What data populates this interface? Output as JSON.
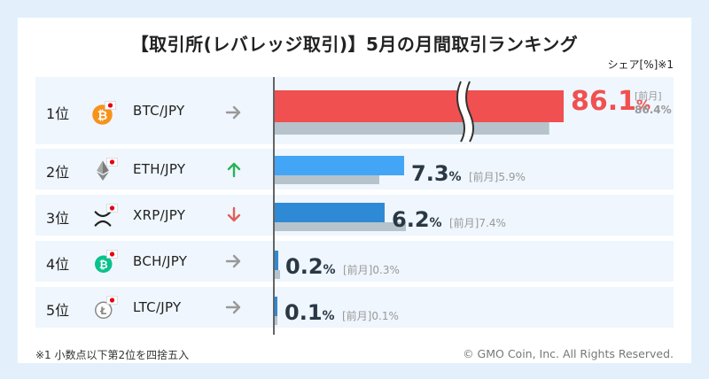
{
  "title": "【取引所(レバレッジ取引)】5月の月間取引ランキング",
  "share_label": "シェア[%]※1",
  "footnote": "※1 小数点以下第2位を四捨五入",
  "copyright": "© GMO Coin, Inc. All Rights Reserved.",
  "colors": {
    "highlight": "#f05050",
    "bar": "#42a5f5",
    "bar_dark": "#2f8ad6",
    "previous": "#b7c3cc",
    "row_bg": "#eff6fd",
    "up": "#28b45a",
    "down": "#e0605a",
    "flat": "#999999"
  },
  "rows": [
    {
      "rank": "1位",
      "pair": "BTC/JPY",
      "coin_icon": "bitcoin-icon",
      "trend": "flat",
      "trend_icon": "arrow-right-icon",
      "value_label": "86.1%",
      "prev_label": "[前月] 86.4%"
    },
    {
      "rank": "2位",
      "pair": "ETH/JPY",
      "coin_icon": "ethereum-icon",
      "trend": "up",
      "trend_icon": "arrow-up-icon",
      "value_label": "7.3%",
      "prev_label": "[前月]5.9%"
    },
    {
      "rank": "3位",
      "pair": "XRP/JPY",
      "coin_icon": "xrp-icon",
      "trend": "down",
      "trend_icon": "arrow-down-icon",
      "value_label": "6.2%",
      "prev_label": "[前月]7.4%"
    },
    {
      "rank": "4位",
      "pair": "BCH/JPY",
      "coin_icon": "bitcoin-cash-icon",
      "trend": "flat",
      "trend_icon": "arrow-right-icon",
      "value_label": "0.2%",
      "prev_label": "[前月]0.3%"
    },
    {
      "rank": "5位",
      "pair": "LTC/JPY",
      "coin_icon": "litecoin-icon",
      "trend": "flat",
      "trend_icon": "arrow-right-icon",
      "value_label": "0.1%",
      "prev_label": "[前月]0.1%"
    }
  ],
  "chart_data": {
    "type": "bar",
    "orientation": "horizontal",
    "title": "【取引所(レバレッジ取引)】5月の月間取引ランキング",
    "categories": [
      "BTC/JPY",
      "ETH/JPY",
      "XRP/JPY",
      "BCH/JPY",
      "LTC/JPY"
    ],
    "series": [
      {
        "name": "",
        "values": [
          86.1,
          7.3,
          6.2,
          0.2,
          0.1
        ]
      },
      {
        "name": "前月",
        "values": [
          86.4,
          5.9,
          7.4,
          0.3,
          0.1
        ]
      }
    ],
    "axis_break": true,
    "ylabel": "シェア[%]※1"
  }
}
